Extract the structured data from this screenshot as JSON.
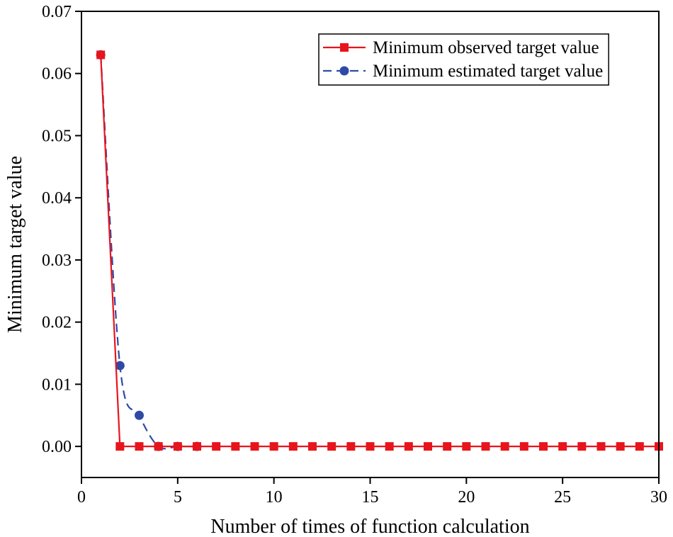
{
  "chart_data": {
    "type": "line",
    "title": "",
    "xlabel": "Number of times of function calculation",
    "ylabel": "Minimum target value",
    "xlim": [
      0,
      30
    ],
    "ylim": [
      -0.005,
      0.07
    ],
    "xticks": [
      0,
      5,
      10,
      15,
      20,
      25,
      30
    ],
    "xtick_labels": [
      "0",
      "5",
      "10",
      "15",
      "20",
      "25",
      "30"
    ],
    "yticks": [
      0,
      0.01,
      0.02,
      0.03,
      0.04,
      0.05,
      0.06,
      0.07
    ],
    "ytick_labels": [
      "0.00",
      "0.01",
      "0.02",
      "0.03",
      "0.04",
      "0.05",
      "0.06",
      "0.07"
    ],
    "grid": false,
    "legend_position": "top-right",
    "series": [
      {
        "name": "Minimum observed target value",
        "color": "#e8141c",
        "marker": "square",
        "line_style": "solid",
        "x": [
          1,
          2,
          3,
          4,
          5,
          6,
          7,
          8,
          9,
          10,
          11,
          12,
          13,
          14,
          15,
          16,
          17,
          18,
          19,
          20,
          21,
          22,
          23,
          24,
          25,
          26,
          27,
          28,
          29,
          30
        ],
        "y": [
          0.063,
          0,
          0,
          0,
          0,
          0,
          0,
          0,
          0,
          0,
          0,
          0,
          0,
          0,
          0,
          0,
          0,
          0,
          0,
          0,
          0,
          0,
          0,
          0,
          0,
          0,
          0,
          0,
          0,
          0
        ]
      },
      {
        "name": "Minimum estimated target value",
        "color": "#2f4aa6",
        "marker": "circle",
        "line_style": "dashed",
        "x": [
          1,
          2,
          3,
          4,
          5,
          6
        ],
        "y": [
          0.063,
          0.013,
          0.005,
          0,
          0,
          0
        ]
      }
    ]
  }
}
